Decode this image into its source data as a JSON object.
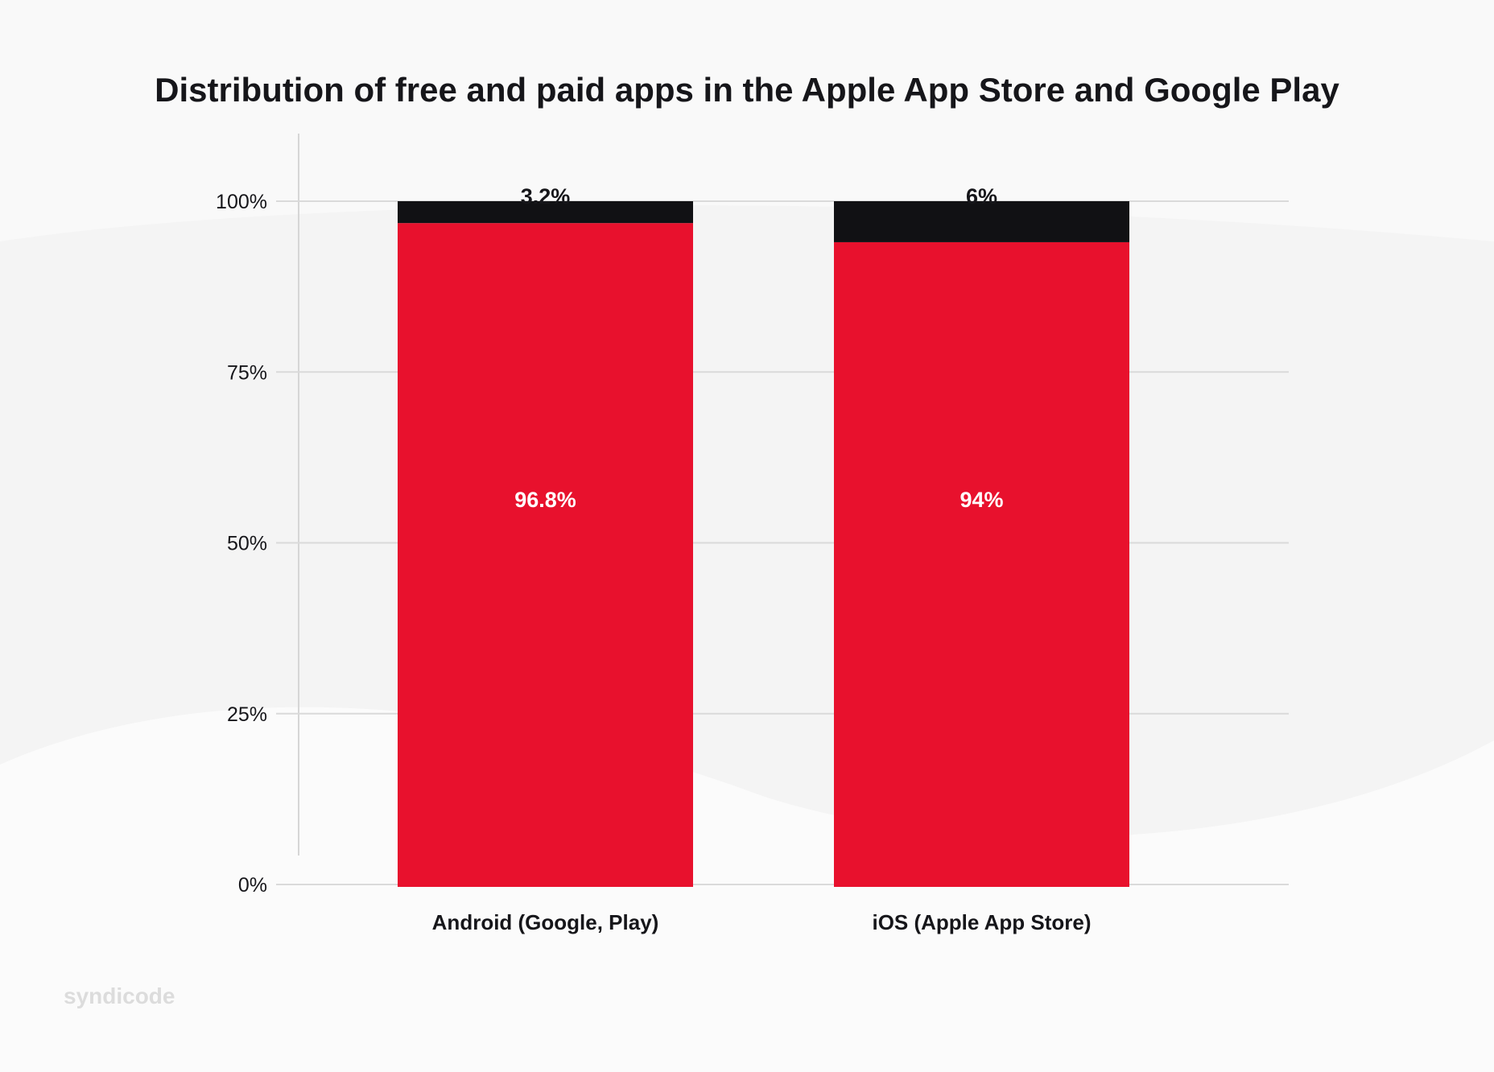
{
  "chart_data": {
    "type": "bar",
    "stacked": true,
    "title": "Distribution of free and paid apps in the Apple App Store and Google Play",
    "categories": [
      "Android (Google, Play)",
      "iOS (Apple App Store)"
    ],
    "series": [
      {
        "values": [
          96.8,
          94
        ],
        "labels": [
          "96.8%",
          "94%"
        ],
        "color": "#e8112d"
      },
      {
        "values": [
          3.2,
          6
        ],
        "labels": [
          "3.2%",
          "6%"
        ],
        "color": "#111114"
      }
    ],
    "ylim": [
      0,
      100
    ],
    "yticks": [
      0,
      25,
      50,
      75,
      100
    ],
    "ytick_labels": [
      "0%",
      "25%",
      "50%",
      "75%",
      "100%"
    ],
    "grid": true,
    "xlabel": "",
    "ylabel": ""
  },
  "branding": {
    "logo": "syndicode"
  }
}
